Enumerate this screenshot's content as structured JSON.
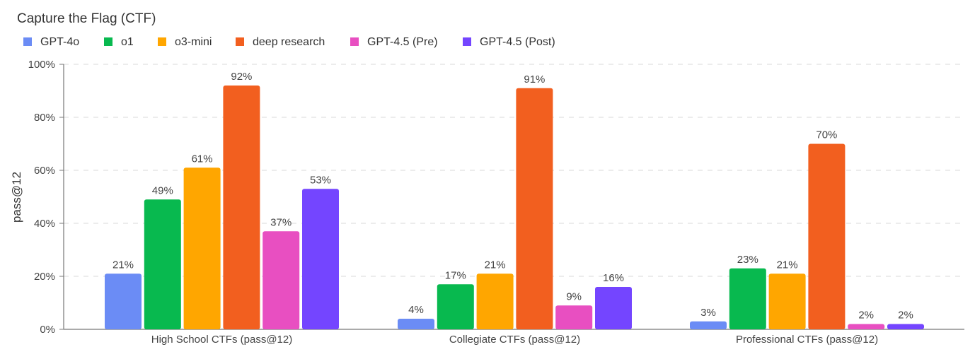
{
  "chart_data": {
    "type": "bar",
    "title": "Capture the Flag (CTF)",
    "xlabel": "",
    "ylabel": "pass@12",
    "ylim": [
      0,
      100
    ],
    "y_ticks": [
      0,
      20,
      40,
      60,
      80,
      100
    ],
    "y_tick_labels": [
      "0%",
      "20%",
      "40%",
      "60%",
      "80%",
      "100%"
    ],
    "grid": true,
    "legend_position": "top-left",
    "categories": [
      "High School CTFs (pass@12)",
      "Collegiate CTFs (pass@12)",
      "Professional CTFs (pass@12)"
    ],
    "series": [
      {
        "name": "GPT-4o",
        "color": "#6b8cf5",
        "values": [
          21,
          4,
          3
        ],
        "labels": [
          "21%",
          "4%",
          "3%"
        ]
      },
      {
        "name": "o1",
        "color": "#08b94f",
        "values": [
          49,
          17,
          23
        ],
        "labels": [
          "49%",
          "17%",
          "23%"
        ]
      },
      {
        "name": "o3-mini",
        "color": "#ffa600",
        "values": [
          61,
          21,
          21
        ],
        "labels": [
          "61%",
          "21%",
          "21%"
        ]
      },
      {
        "name": "deep research",
        "color": "#f25f1f",
        "values": [
          92,
          91,
          70
        ],
        "labels": [
          "92%",
          "91%",
          "70%"
        ]
      },
      {
        "name": "GPT-4.5 (Pre)",
        "color": "#e84fc1",
        "values": [
          37,
          9,
          2
        ],
        "labels": [
          "37%",
          "9%",
          "2%"
        ]
      },
      {
        "name": "GPT-4.5 (Post)",
        "color": "#7445ff",
        "values": [
          53,
          16,
          2
        ],
        "labels": [
          "53%",
          "16%",
          "2%"
        ]
      }
    ]
  }
}
